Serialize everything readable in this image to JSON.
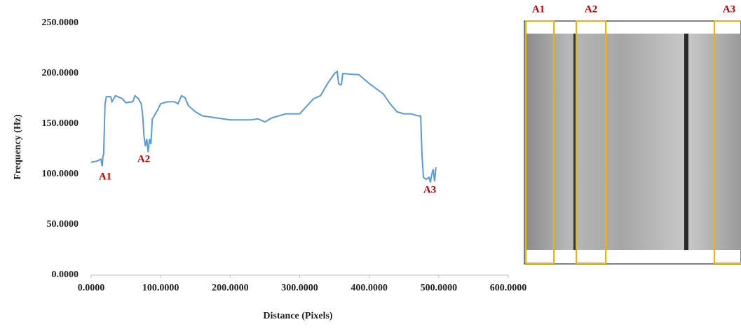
{
  "chart_data": {
    "type": "line",
    "y_label": "Frequency (Hz)",
    "x_label": "Distance (Pixels)",
    "color": "#5b9bd5",
    "x": [
      0,
      8,
      14,
      16,
      17,
      18,
      20,
      22,
      28,
      30,
      35,
      45,
      50,
      60,
      63,
      68,
      72,
      74,
      76,
      78,
      80,
      82,
      84,
      86,
      88,
      90,
      95,
      100,
      110,
      120,
      125,
      130,
      135,
      140,
      150,
      160,
      180,
      200,
      230,
      240,
      250,
      260,
      280,
      300,
      320,
      330,
      340,
      350,
      354,
      356,
      358,
      360,
      362,
      380,
      385,
      400,
      420,
      430,
      440,
      450,
      460,
      470,
      474,
      476,
      478,
      482,
      486,
      488,
      490,
      492,
      494,
      496
    ],
    "values": [
      112,
      113,
      115,
      108,
      118,
      120,
      170,
      177,
      177,
      172,
      178,
      175,
      171,
      172,
      178,
      175,
      170,
      160,
      138,
      128,
      135,
      122,
      135,
      130,
      155,
      157,
      163,
      170,
      172,
      172,
      170,
      178,
      176,
      168,
      162,
      158,
      156,
      154,
      154,
      155,
      152,
      156,
      160,
      160,
      175,
      178,
      190,
      200,
      202,
      190,
      189,
      189,
      200,
      199,
      199,
      190,
      180,
      170,
      162,
      160,
      160,
      158,
      158,
      118,
      97,
      95,
      97,
      92,
      100,
      105,
      93,
      107
    ],
    "xlim": [
      0,
      600
    ],
    "ylim": [
      0,
      250
    ],
    "xticks": [
      {
        "value": 0,
        "label": "0.0000"
      },
      {
        "value": 100,
        "label": "100.0000"
      },
      {
        "value": 200,
        "label": "200.0000"
      },
      {
        "value": 300,
        "label": "300.0000"
      },
      {
        "value": 400,
        "label": "400.0000"
      },
      {
        "value": 500,
        "label": "500.0000"
      },
      {
        "value": 600,
        "label": "600.0000"
      }
    ],
    "yticks": [
      {
        "value": 0,
        "label": "0.0000"
      },
      {
        "value": 50,
        "label": "50.0000"
      },
      {
        "value": 100,
        "label": "100.0000"
      },
      {
        "value": 150,
        "label": "150.0000"
      },
      {
        "value": 200,
        "label": "200.0000"
      },
      {
        "value": 250,
        "label": "250.0000"
      }
    ],
    "annotations": [
      "A1",
      "A2",
      "A3"
    ]
  },
  "image": {
    "labels": [
      "A1",
      "A2",
      "A3"
    ]
  }
}
